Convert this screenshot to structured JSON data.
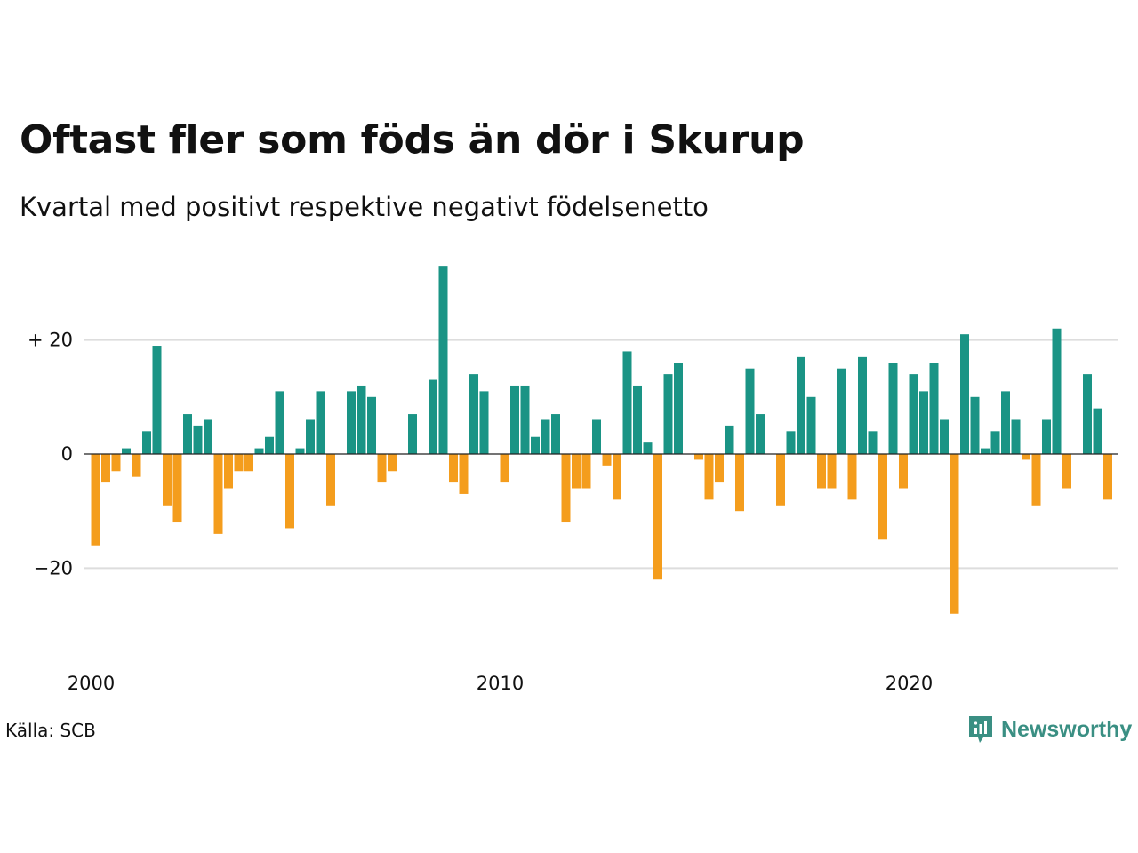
{
  "title": "Oftast fler som föds än dör i Skurup",
  "subtitle": "Kvartal med positivt respektive negativt födelsenetto",
  "source": "Källa: SCB",
  "brand": {
    "name": "Newsworthy",
    "icon": "newsworthy-logo-icon",
    "color": "#3a8f83"
  },
  "colors": {
    "positive": "#1a9485",
    "negative": "#f49d1d",
    "grid": "#dddddd"
  },
  "chart_data": {
    "type": "bar",
    "title": "Oftast fler som föds än dör i Skurup",
    "subtitle": "Kvartal med positivt respektive negativt födelsenetto",
    "xlabel": "",
    "ylabel": "",
    "x_start_year": 2000,
    "periods_per_year": 4,
    "values": [
      -16,
      -5,
      -3,
      1,
      -4,
      4,
      19,
      -9,
      -12,
      7,
      5,
      6,
      -14,
      -6,
      -3,
      -3,
      1,
      3,
      11,
      -13,
      1,
      6,
      11,
      -9,
      0,
      11,
      12,
      10,
      -5,
      -3,
      0,
      7,
      0,
      13,
      33,
      -5,
      -7,
      14,
      11,
      0,
      -5,
      12,
      12,
      3,
      6,
      7,
      -12,
      -6,
      -6,
      6,
      -2,
      -8,
      18,
      12,
      2,
      -22,
      14,
      16,
      0,
      -1,
      -8,
      -5,
      5,
      -10,
      15,
      7,
      0,
      -9,
      4,
      17,
      10,
      -6,
      -6,
      15,
      -8,
      17,
      4,
      -15,
      16,
      -6,
      14,
      11,
      16,
      6,
      -28,
      21,
      10,
      1,
      4,
      11,
      6,
      -1,
      -9,
      6,
      22,
      -6,
      0,
      14,
      8,
      -8
    ],
    "ylim": [
      -30,
      34
    ],
    "y_ticks": [
      {
        "value": 20,
        "label": "+ 20"
      },
      {
        "value": 0,
        "label": "0"
      },
      {
        "value": -20,
        "label": "−20"
      }
    ],
    "x_ticks": [
      {
        "value": 2000,
        "label": "2000"
      },
      {
        "value": 2010,
        "label": "2010"
      },
      {
        "value": 2020,
        "label": "2020"
      }
    ],
    "grid": true,
    "legend": "none"
  }
}
